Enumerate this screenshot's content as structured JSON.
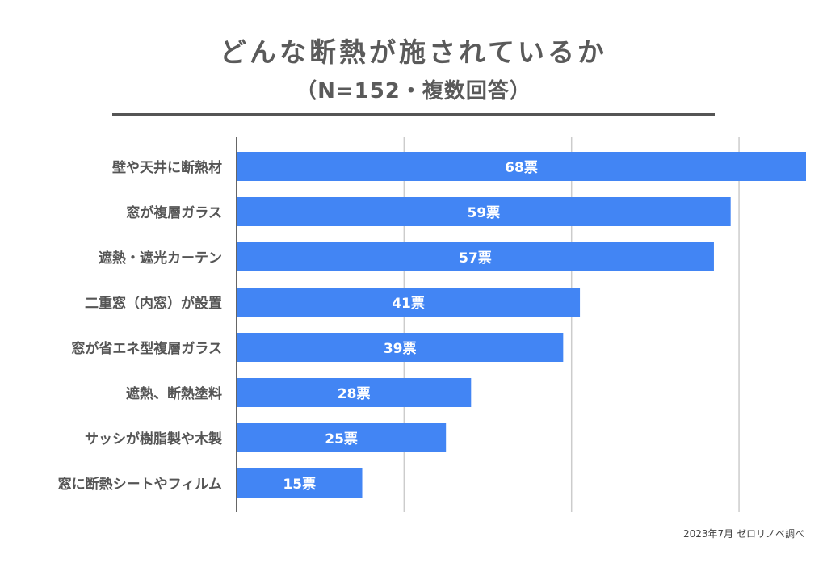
{
  "title": "どんな断熱が施されているか",
  "subtitle": "（N=152・複数回答）",
  "source_note": "2023年7月 ゼロリノベ調べ",
  "colors": {
    "bar": "#4285f4",
    "bar_label": "#ffffff",
    "gridline": "#cccccc",
    "axis": "#333333",
    "category_text": "#555555"
  },
  "chart_data": {
    "type": "bar",
    "orientation": "horizontal",
    "title": "どんな断熱が施されているか",
    "subtitle": "（N=152・複数回答）",
    "categories": [
      "壁や天井に断熱材",
      "窓が複層ガラス",
      "遮熱・遮光カーテン",
      "二重窓（内窓）が設置",
      "窓が省エネ型複層ガラス",
      "遮熱、断熱塗料",
      "サッシが樹脂製や木製",
      "窓に断熱シートやフィルム"
    ],
    "values": [
      68,
      59,
      57,
      41,
      39,
      28,
      25,
      15
    ],
    "value_labels": [
      "68票",
      "59票",
      "57票",
      "41票",
      "39票",
      "28票",
      "25票",
      "15票"
    ],
    "unit": "票",
    "xlim": [
      0,
      68
    ],
    "gridlines": [
      20,
      40,
      60
    ],
    "xlabel": "",
    "ylabel": "",
    "legend": "none"
  }
}
